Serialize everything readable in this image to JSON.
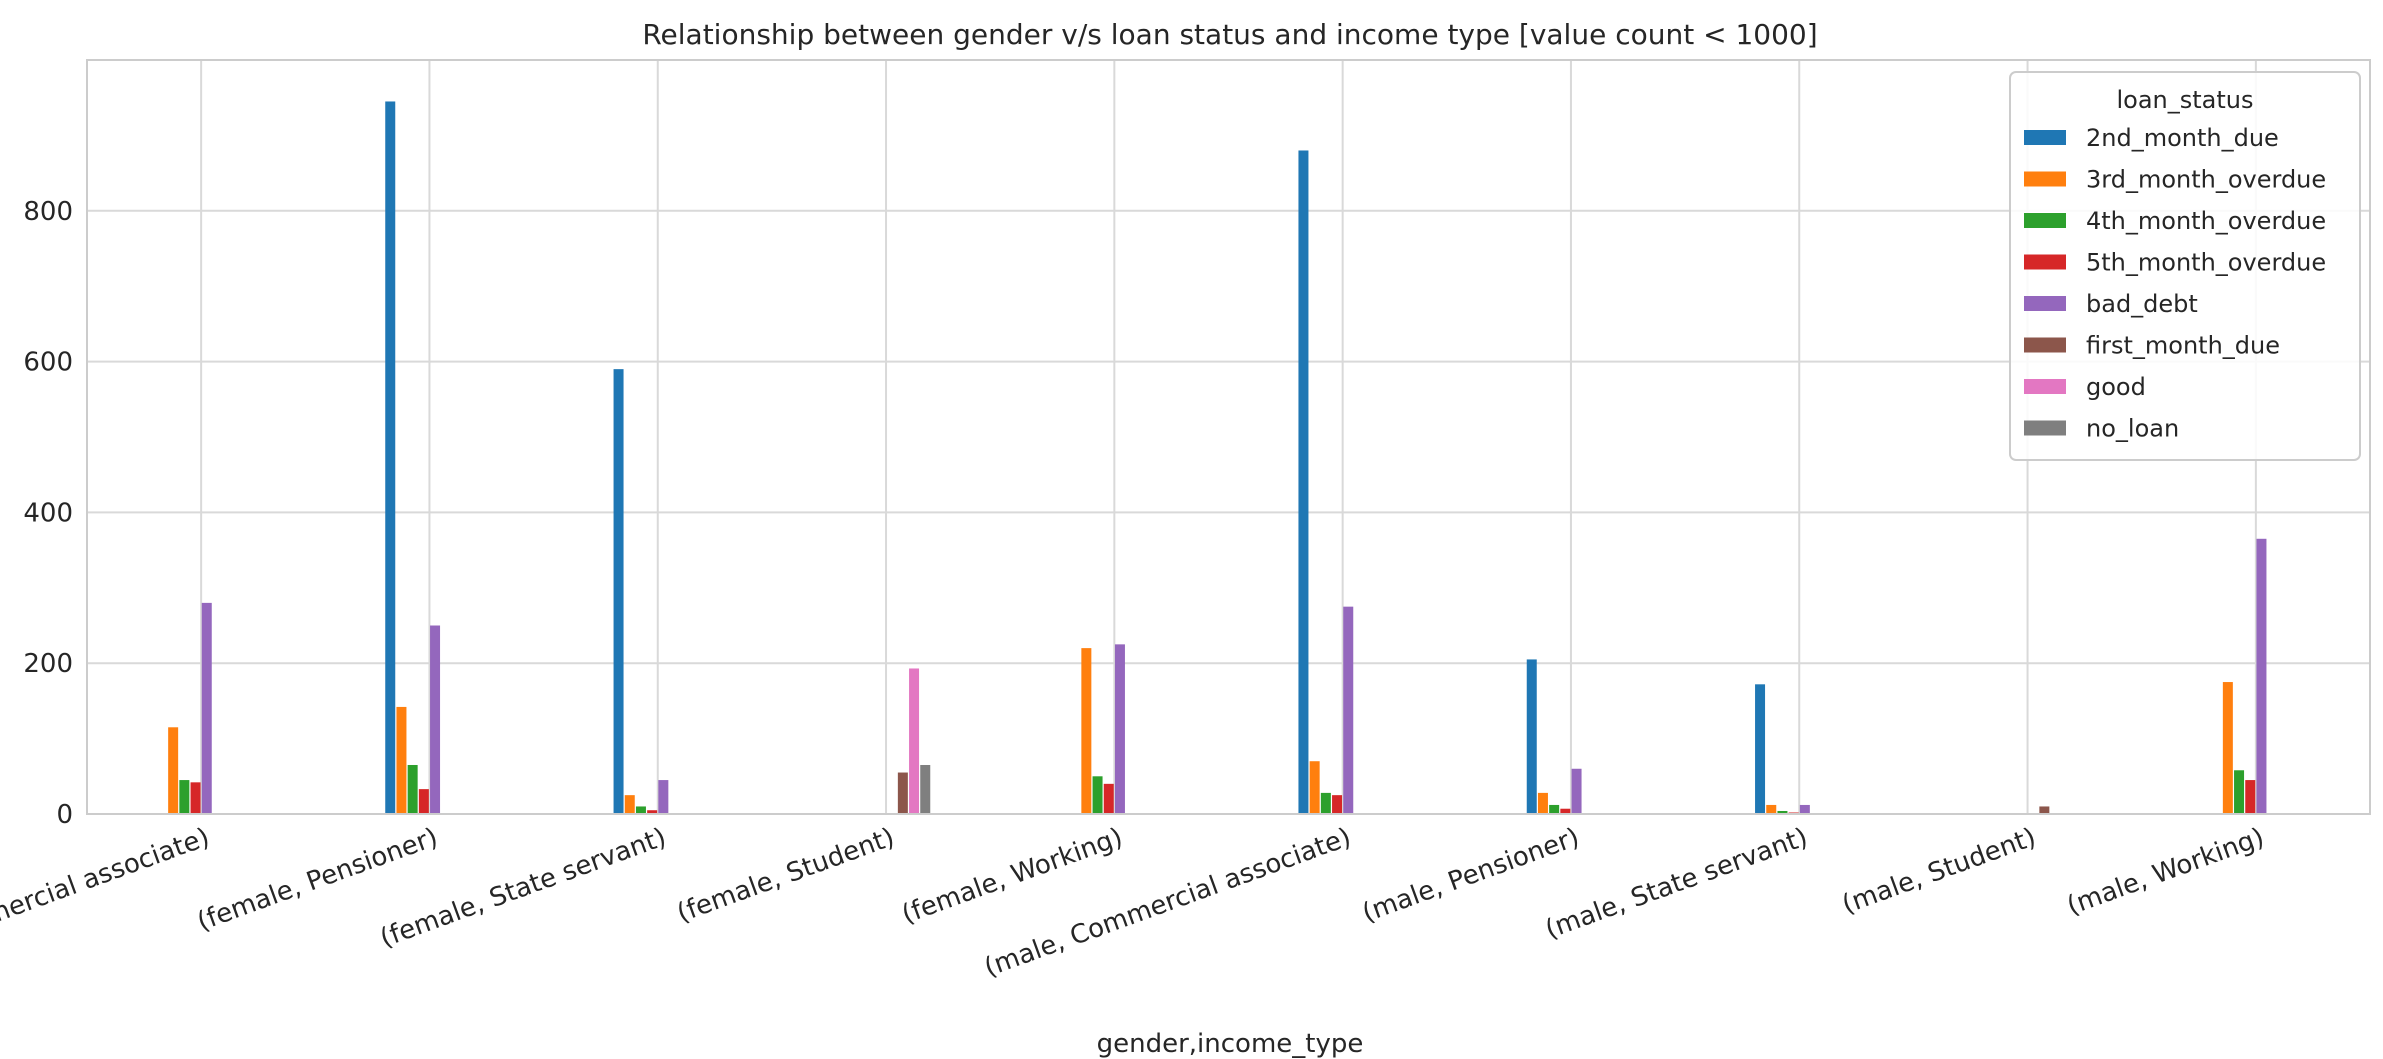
{
  "chart_data": {
    "type": "bar",
    "title": "Relationship between gender v/s loan status and income type [value count < 1000]",
    "xlabel": "gender,income_type",
    "ylabel": "",
    "ylim": [
      0,
      1000
    ],
    "yticks": [
      0,
      200,
      400,
      600,
      800
    ],
    "grid": true,
    "legend": {
      "title": "loan_status",
      "placement": "top-right"
    },
    "categories": [
      "(female, Commercial associate)",
      "(female, Pensioner)",
      "(female, State servant)",
      "(female, Student)",
      "(female, Working)",
      "(male, Commercial associate)",
      "(male, Pensioner)",
      "(male, State servant)",
      "(male, Student)",
      "(male, Working)"
    ],
    "series": [
      {
        "name": "2nd_month_due",
        "color": "#1f77b4",
        "values": [
          0,
          945,
          590,
          0,
          0,
          880,
          205,
          172,
          0,
          0
        ]
      },
      {
        "name": "3rd_month_overdue",
        "color": "#ff7f0e",
        "values": [
          115,
          142,
          25,
          0,
          220,
          70,
          28,
          12,
          0,
          175
        ]
      },
      {
        "name": "4th_month_overdue",
        "color": "#2ca02c",
        "values": [
          45,
          65,
          10,
          0,
          50,
          28,
          12,
          4,
          0,
          58
        ]
      },
      {
        "name": "5th_month_overdue",
        "color": "#d62728",
        "values": [
          42,
          33,
          5,
          0,
          40,
          25,
          7,
          2,
          0,
          45
        ]
      },
      {
        "name": "bad_debt",
        "color": "#9467bd",
        "values": [
          280,
          250,
          45,
          0,
          225,
          275,
          60,
          12,
          0,
          365
        ]
      },
      {
        "name": "first_month_due",
        "color": "#8c564b",
        "values": [
          0,
          0,
          0,
          55,
          0,
          0,
          0,
          0,
          10,
          0
        ]
      },
      {
        "name": "good",
        "color": "#e377c2",
        "values": [
          0,
          0,
          0,
          193,
          0,
          0,
          0,
          0,
          0,
          0
        ]
      },
      {
        "name": "no_loan",
        "color": "#7f7f7f",
        "values": [
          0,
          0,
          0,
          65,
          0,
          0,
          0,
          0,
          0,
          0
        ]
      }
    ]
  }
}
